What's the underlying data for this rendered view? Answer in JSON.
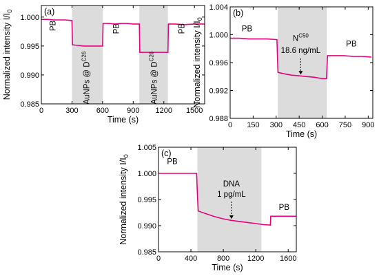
{
  "chart_data": [
    {
      "type": "line",
      "panel_label": "(a)",
      "xlabel": "Time (s)",
      "ylabel": "Normalized intensity I/I",
      "ylabel_sub": "0",
      "xlim": [
        0,
        1600
      ],
      "ylim": [
        0.985,
        1.002
      ],
      "xticks": [
        0,
        300,
        600,
        900,
        1200,
        1500
      ],
      "yticks": [
        0.985,
        0.99,
        0.995,
        1.0
      ],
      "ytick_labels": [
        "0.985",
        "0.990",
        "0.995",
        "1.000"
      ],
      "shaded": [
        [
          300,
          600
        ],
        [
          960,
          1240
        ]
      ],
      "annotations": [
        {
          "text": "PB",
          "x": 140,
          "y": 0.9985,
          "rotate": true
        },
        {
          "text": "PB",
          "x": 760,
          "y": 0.998,
          "rotate": true
        },
        {
          "text": "PB",
          "x": 1400,
          "y": 0.998,
          "rotate": true
        },
        {
          "text": "AuNPs @ D",
          "sup": "C26",
          "x": 470,
          "y": 0.9895,
          "rotate": true
        },
        {
          "text": "AuNPs @ D",
          "sup": "C26",
          "x": 1130,
          "y": 0.9895,
          "rotate": true
        }
      ],
      "series": [
        {
          "color": "#e5007e",
          "x": [
            0,
            60,
            120,
            180,
            240,
            300,
            305,
            360,
            420,
            480,
            540,
            600,
            605,
            660,
            720,
            780,
            840,
            900,
            960,
            965,
            1020,
            1080,
            1140,
            1200,
            1240,
            1245,
            1300,
            1400,
            1500,
            1600
          ],
          "y": [
            0.9996,
            0.9996,
            0.9995,
            0.9995,
            0.9995,
            0.9994,
            0.9952,
            0.9951,
            0.995,
            0.995,
            0.995,
            0.995,
            0.9989,
            0.9989,
            0.9988,
            0.9989,
            0.9989,
            0.9988,
            0.9988,
            0.9939,
            0.9939,
            0.9939,
            0.9939,
            0.9939,
            0.9939,
            0.9988,
            0.9988,
            0.9987,
            0.9988,
            0.9988
          ]
        }
      ]
    },
    {
      "type": "line",
      "panel_label": "(b)",
      "xlabel": "Time (s)",
      "ylabel": "Normalized intensity I/I",
      "ylabel_sub": "0",
      "xlim": [
        0,
        930
      ],
      "ylim": [
        0.988,
        1.004
      ],
      "xticks": [
        0,
        150,
        300,
        450,
        600,
        750,
        900
      ],
      "yticks": [
        0.988,
        0.992,
        0.996,
        1.0,
        1.004
      ],
      "ytick_labels": [
        "0.988",
        "0.992",
        "0.996",
        "1.000",
        "1.004"
      ],
      "shaded": [
        [
          310,
          630
        ]
      ],
      "annotations": [
        {
          "text": "PB",
          "x": 110,
          "y": 1.0005
        },
        {
          "text": "N",
          "sup": "C50",
          "x": 460,
          "y": 0.9991
        },
        {
          "text": "18.6 ng/mL",
          "x": 460,
          "y": 0.9974
        },
        {
          "text": "PB",
          "x": 790,
          "y": 0.9983
        }
      ],
      "arrow": {
        "x": 460,
        "y_from": 0.9966,
        "y_to": 0.9943
      },
      "series": [
        {
          "color": "#e5007e",
          "x": [
            0,
            60,
            120,
            180,
            240,
            305,
            312,
            350,
            400,
            450,
            500,
            550,
            600,
            628,
            635,
            680,
            740,
            800,
            860,
            920
          ],
          "y": [
            0.9995,
            0.9995,
            0.9994,
            0.9994,
            0.9994,
            0.9993,
            0.9946,
            0.9944,
            0.9942,
            0.9941,
            0.994,
            0.9939,
            0.9937,
            0.9937,
            0.997,
            0.997,
            0.997,
            0.9969,
            0.9969,
            0.9968
          ]
        }
      ]
    },
    {
      "type": "line",
      "panel_label": "(c)",
      "xlabel": "Time (s)",
      "ylabel": "Normalized intensity I/I",
      "ylabel_sub": "0",
      "xlim": [
        0,
        1700
      ],
      "ylim": [
        0.985,
        1.005
      ],
      "xticks": [
        0,
        400,
        800,
        1200,
        1600
      ],
      "yticks": [
        0.985,
        0.99,
        0.995,
        1.0,
        1.005
      ],
      "ytick_labels": [
        "0.985",
        "0.990",
        "0.995",
        "1.000",
        "1.005"
      ],
      "shaded": [
        [
          480,
          1270
        ]
      ],
      "annotations": [
        {
          "text": "PB",
          "x": 170,
          "y": 1.0018
        },
        {
          "text": "DNA",
          "x": 900,
          "y": 0.9975
        },
        {
          "text": "1 pg/mL",
          "x": 900,
          "y": 0.9955
        },
        {
          "text": "PB",
          "x": 1550,
          "y": 0.993
        }
      ],
      "arrow": {
        "x": 900,
        "y_from": 0.9946,
        "y_to": 0.9913
      },
      "series": [
        {
          "color": "#e5007e",
          "x": [
            0,
            100,
            200,
            300,
            400,
            470,
            480,
            490,
            600,
            700,
            800,
            900,
            1000,
            1100,
            1200,
            1300,
            1380,
            1385,
            1450,
            1550,
            1650,
            1700
          ],
          "y": [
            1.0,
            1.0,
            1.0,
            1.0,
            1.0,
            1.0,
            0.996,
            0.9928,
            0.9922,
            0.9917,
            0.9913,
            0.991,
            0.9908,
            0.9906,
            0.9904,
            0.9902,
            0.9901,
            0.9918,
            0.9918,
            0.9918,
            0.9918,
            0.9918
          ]
        }
      ]
    }
  ]
}
